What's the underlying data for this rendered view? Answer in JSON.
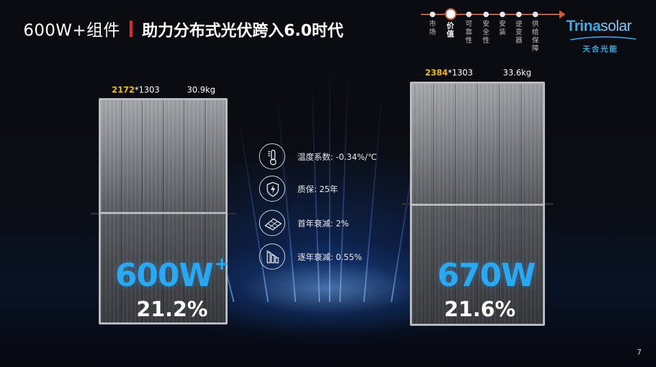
{
  "header": {
    "title": "600W+组件",
    "subtitle": "助力分布式光伏跨入6.0时代",
    "accent_color": "#e2272c"
  },
  "nav": {
    "items": [
      {
        "label": "市场",
        "active": false
      },
      {
        "label": "价值",
        "active": true
      },
      {
        "label": "可靠性",
        "active": false
      },
      {
        "label": "安全性",
        "active": false
      },
      {
        "label": "安装",
        "active": false
      },
      {
        "label": "逆变器",
        "active": false
      },
      {
        "label": "供给保障",
        "active": false
      }
    ],
    "line_color": "#d25a36"
  },
  "logo": {
    "word_bold": "Trina",
    "word_light": "solar",
    "cn": "天合光能",
    "color": "#3aa7e6"
  },
  "panels": [
    {
      "dim_length": "2172",
      "dim_rest": "*1303",
      "weight": "30.9kg",
      "power": "600W",
      "power_sup": "+",
      "efficiency": "21.2%"
    },
    {
      "dim_length": "2384",
      "dim_rest": "*1303",
      "weight": "33.6kg",
      "power": "670W",
      "power_sup": "",
      "efficiency": "21.6%"
    }
  ],
  "features": [
    {
      "icon": "thermometer-icon",
      "text": "温度系数: -0.34%/℃"
    },
    {
      "icon": "shield-bolt-icon",
      "text": "质保: 25年"
    },
    {
      "icon": "solar-panel-icon",
      "text": "首年衰减: 2%"
    },
    {
      "icon": "decline-chart-icon",
      "text": "逐年衰减: 0.55%"
    }
  ],
  "colors": {
    "power_blue": "#29a8f4",
    "dimension_highlight": "#f5b800"
  },
  "page_number": "7"
}
